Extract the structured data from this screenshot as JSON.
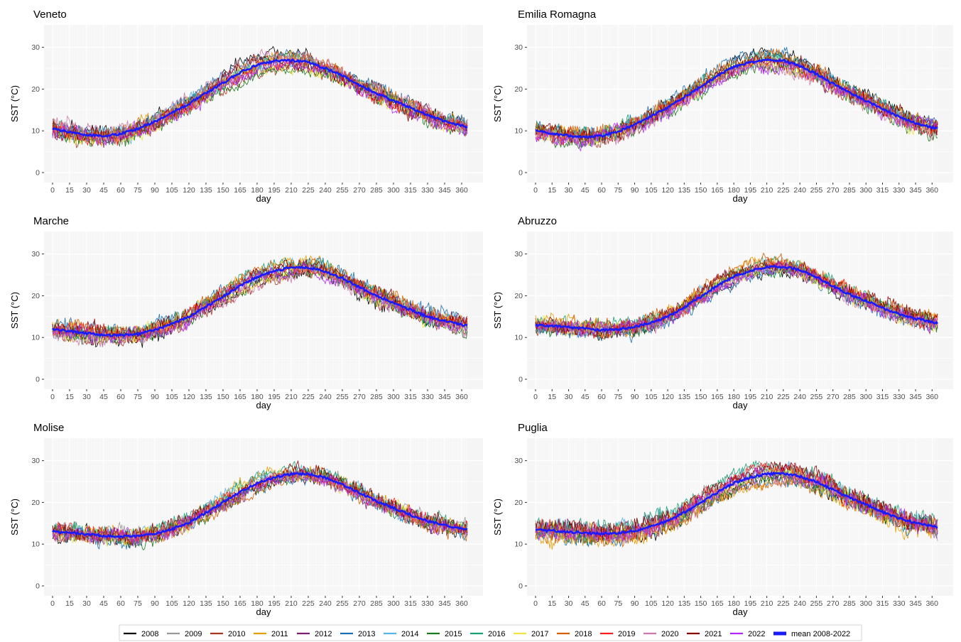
{
  "figure": {
    "legend_position": "bottom",
    "legend": [
      {
        "label": "2008",
        "color": "#000000"
      },
      {
        "label": "2009",
        "color": "#999999"
      },
      {
        "label": "2010",
        "color": "#a6341f"
      },
      {
        "label": "2011",
        "color": "#e69f00"
      },
      {
        "label": "2012",
        "color": "#7b1f6f"
      },
      {
        "label": "2013",
        "color": "#1a6fb0"
      },
      {
        "label": "2014",
        "color": "#56b4e9"
      },
      {
        "label": "2015",
        "color": "#1b7a1b"
      },
      {
        "label": "2016",
        "color": "#1a9e77"
      },
      {
        "label": "2017",
        "color": "#f0e442"
      },
      {
        "label": "2018",
        "color": "#d55e00"
      },
      {
        "label": "2019",
        "color": "#ff1a1a"
      },
      {
        "label": "2020",
        "color": "#cc79a7"
      },
      {
        "label": "2021",
        "color": "#8b0000"
      },
      {
        "label": "2022",
        "color": "#b026ff"
      },
      {
        "label": "mean 2008-2022",
        "color": "#1a1aff"
      }
    ]
  },
  "chart_data": [
    {
      "type": "line",
      "title": "Veneto",
      "xlabel": "day",
      "ylabel": "SST (°C)",
      "xlim": [
        0,
        365
      ],
      "ylim": [
        0,
        30
      ],
      "xticks": [
        0,
        15,
        30,
        45,
        60,
        75,
        90,
        105,
        120,
        135,
        150,
        165,
        180,
        195,
        210,
        225,
        240,
        255,
        270,
        285,
        300,
        315,
        330,
        345,
        360
      ],
      "yticks": [
        0,
        10,
        20,
        30
      ],
      "mean_series": {
        "name": "mean 2008-2022",
        "x": [
          0,
          15,
          30,
          45,
          60,
          75,
          90,
          105,
          120,
          135,
          150,
          165,
          180,
          195,
          210,
          225,
          240,
          255,
          270,
          285,
          300,
          315,
          330,
          345,
          365
        ],
        "y": [
          10.5,
          9.7,
          9,
          8.7,
          9.3,
          10.5,
          12.2,
          14.3,
          16.5,
          19,
          21.5,
          24,
          25.8,
          26.7,
          26.9,
          26.4,
          25,
          23.2,
          21,
          19,
          17.2,
          15.5,
          13.8,
          12.3,
          11
        ]
      },
      "year_variability": 1.6,
      "grid": true
    },
    {
      "type": "line",
      "title": "Emilia Romagna",
      "xlabel": "day",
      "ylabel": "SST (°C)",
      "xlim": [
        0,
        365
      ],
      "ylim": [
        0,
        30
      ],
      "xticks": [
        0,
        15,
        30,
        45,
        60,
        75,
        90,
        105,
        120,
        135,
        150,
        165,
        180,
        195,
        210,
        225,
        240,
        255,
        270,
        285,
        300,
        315,
        330,
        345,
        360
      ],
      "yticks": [
        0,
        10,
        20,
        30
      ],
      "mean_series": {
        "name": "mean 2008-2022",
        "x": [
          0,
          15,
          30,
          45,
          60,
          75,
          90,
          105,
          120,
          135,
          150,
          165,
          180,
          195,
          210,
          225,
          240,
          255,
          270,
          285,
          300,
          315,
          330,
          345,
          365
        ],
        "y": [
          10,
          9.3,
          8.8,
          8.5,
          8.8,
          9.8,
          11.5,
          13.5,
          15.6,
          18,
          20.5,
          23.2,
          25.3,
          26.4,
          27,
          26.8,
          25.5,
          23.6,
          21.3,
          19.2,
          17.2,
          15.2,
          13.4,
          11.8,
          10.5
        ]
      },
      "year_variability": 1.8,
      "grid": true
    },
    {
      "type": "line",
      "title": "Marche",
      "xlabel": "day",
      "ylabel": "SST (°C)",
      "xlim": [
        0,
        365
      ],
      "ylim": [
        0,
        30
      ],
      "xticks": [
        0,
        15,
        30,
        45,
        60,
        75,
        90,
        105,
        120,
        135,
        150,
        165,
        180,
        195,
        210,
        225,
        240,
        255,
        270,
        285,
        300,
        315,
        330,
        345,
        360
      ],
      "yticks": [
        0,
        10,
        20,
        30
      ],
      "mean_series": {
        "name": "mean 2008-2022",
        "x": [
          0,
          15,
          30,
          45,
          60,
          75,
          90,
          105,
          120,
          135,
          150,
          165,
          180,
          195,
          210,
          225,
          240,
          255,
          270,
          285,
          300,
          315,
          330,
          345,
          365
        ],
        "y": [
          12,
          11.5,
          11,
          10.6,
          10.5,
          10.8,
          11.8,
          13.2,
          15,
          17.3,
          19.8,
          22.3,
          24.5,
          25.9,
          26.8,
          26.8,
          25.8,
          24.2,
          22,
          20,
          18.3,
          16.6,
          15,
          14,
          12.8
        ]
      },
      "year_variability": 1.6,
      "grid": true
    },
    {
      "type": "line",
      "title": "Abruzzo",
      "xlabel": "day",
      "ylabel": "SST (°C)",
      "xlim": [
        0,
        365
      ],
      "ylim": [
        0,
        30
      ],
      "xticks": [
        0,
        15,
        30,
        45,
        60,
        75,
        90,
        105,
        120,
        135,
        150,
        165,
        180,
        195,
        210,
        225,
        240,
        255,
        270,
        285,
        300,
        315,
        330,
        345,
        360
      ],
      "yticks": [
        0,
        10,
        20,
        30
      ],
      "mean_series": {
        "name": "mean 2008-2022",
        "x": [
          0,
          15,
          30,
          45,
          60,
          75,
          90,
          105,
          120,
          135,
          150,
          165,
          180,
          195,
          210,
          225,
          240,
          255,
          270,
          285,
          300,
          315,
          330,
          345,
          365
        ],
        "y": [
          13,
          12.8,
          12.5,
          12.1,
          11.8,
          11.9,
          12.5,
          13.6,
          15,
          17.3,
          19.8,
          22.4,
          24.6,
          26,
          26.9,
          27,
          26.2,
          24.5,
          22.3,
          20.3,
          18.8,
          17.1,
          15.6,
          14.5,
          13.5
        ]
      },
      "year_variability": 1.3,
      "grid": true
    },
    {
      "type": "line",
      "title": "Molise",
      "xlabel": "day",
      "ylabel": "SST (°C)",
      "xlim": [
        0,
        365
      ],
      "ylim": [
        0,
        30
      ],
      "xticks": [
        0,
        15,
        30,
        45,
        60,
        75,
        90,
        105,
        120,
        135,
        150,
        165,
        180,
        195,
        210,
        225,
        240,
        255,
        270,
        285,
        300,
        315,
        330,
        345,
        360
      ],
      "yticks": [
        0,
        10,
        20,
        30
      ],
      "mean_series": {
        "name": "mean 2008-2022",
        "x": [
          0,
          15,
          30,
          45,
          60,
          75,
          90,
          105,
          120,
          135,
          150,
          165,
          180,
          195,
          210,
          225,
          240,
          255,
          270,
          285,
          300,
          315,
          330,
          345,
          365
        ],
        "y": [
          13,
          12.7,
          12.4,
          12,
          11.8,
          11.9,
          12.5,
          13.6,
          15.2,
          17.5,
          20,
          22.5,
          24.6,
          26,
          26.8,
          26.8,
          25.9,
          24.3,
          22.3,
          20.3,
          18.7,
          17,
          15.5,
          14.5,
          13.6
        ]
      },
      "year_variability": 1.2,
      "grid": true
    },
    {
      "type": "line",
      "title": "Puglia",
      "xlabel": "day",
      "ylabel": "SST (°C)",
      "xlim": [
        0,
        365
      ],
      "ylim": [
        0,
        30
      ],
      "xticks": [
        0,
        15,
        30,
        45,
        60,
        75,
        90,
        105,
        120,
        135,
        150,
        165,
        180,
        195,
        210,
        225,
        240,
        255,
        270,
        285,
        300,
        315,
        330,
        345,
        360
      ],
      "yticks": [
        0,
        10,
        20,
        30
      ],
      "mean_series": {
        "name": "mean 2008-2022",
        "x": [
          0,
          15,
          30,
          45,
          60,
          75,
          90,
          105,
          120,
          135,
          150,
          165,
          180,
          195,
          210,
          225,
          240,
          255,
          270,
          285,
          300,
          315,
          330,
          345,
          365
        ],
        "y": [
          13.5,
          13.2,
          12.9,
          12.7,
          12.5,
          12.6,
          13.2,
          14.2,
          15.6,
          17.6,
          19.9,
          22.4,
          24.6,
          26,
          26.8,
          26.9,
          26.2,
          24.9,
          23,
          21.1,
          19.5,
          17.7,
          16.2,
          15.1,
          14
        ]
      },
      "year_variability": 1.9,
      "grid": true
    }
  ]
}
